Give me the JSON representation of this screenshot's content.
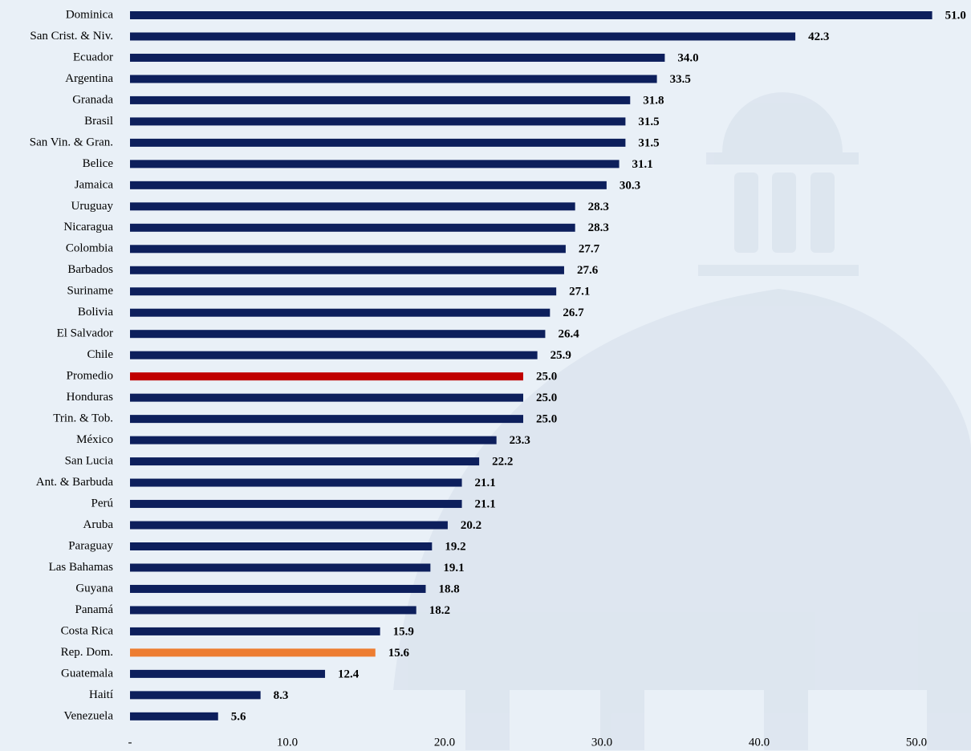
{
  "chart_data": {
    "type": "barh",
    "categories": [
      "Dominica",
      "San Crist. & Niv.",
      "Ecuador",
      "Argentina",
      "Granada",
      "Brasil",
      "San Vin. & Gran.",
      "Belice",
      "Jamaica",
      "Uruguay",
      "Nicaragua",
      "Colombia",
      "Barbados",
      "Suriname",
      "Bolivia",
      "El Salvador",
      "Chile",
      "Promedio",
      "Honduras",
      "Trin. & Tob.",
      "México",
      "San Lucia",
      "Ant. & Barbuda",
      "Perú",
      "Aruba",
      "Paraguay",
      "Las Bahamas",
      "Guyana",
      "Panamá",
      "Costa Rica",
      "Rep. Dom.",
      "Guatemala",
      "Haití",
      "Venezuela"
    ],
    "values": [
      51.0,
      42.3,
      34.0,
      33.5,
      31.8,
      31.5,
      31.5,
      31.1,
      30.3,
      28.3,
      28.3,
      27.7,
      27.6,
      27.1,
      26.7,
      26.4,
      25.9,
      25.0,
      25.0,
      25.0,
      23.3,
      22.2,
      21.1,
      21.1,
      20.2,
      19.2,
      19.1,
      18.8,
      18.2,
      15.9,
      15.6,
      12.4,
      8.3,
      5.6
    ],
    "value_labels": [
      "51.0",
      "42.3",
      "34.0",
      "33.5",
      "31.8",
      "31.5",
      "31.5",
      "31.1",
      "30.3",
      "28.3",
      "28.3",
      "27.7",
      "27.6",
      "27.1",
      "26.7",
      "26.4",
      "25.9",
      "25.0",
      "25.0",
      "25.0",
      "23.3",
      "22.2",
      "21.1",
      "21.1",
      "20.2",
      "19.2",
      "19.1",
      "18.8",
      "18.2",
      "15.9",
      "15.6",
      "12.4",
      "8.3",
      "5.6"
    ],
    "colors": [
      "#0d1f5c",
      "#0d1f5c",
      "#0d1f5c",
      "#0d1f5c",
      "#0d1f5c",
      "#0d1f5c",
      "#0d1f5c",
      "#0d1f5c",
      "#0d1f5c",
      "#0d1f5c",
      "#0d1f5c",
      "#0d1f5c",
      "#0d1f5c",
      "#0d1f5c",
      "#0d1f5c",
      "#0d1f5c",
      "#0d1f5c",
      "#c00000",
      "#0d1f5c",
      "#0d1f5c",
      "#0d1f5c",
      "#0d1f5c",
      "#0d1f5c",
      "#0d1f5c",
      "#0d1f5c",
      "#0d1f5c",
      "#0d1f5c",
      "#0d1f5c",
      "#0d1f5c",
      "#0d1f5c",
      "#ed7d31",
      "#0d1f5c",
      "#0d1f5c",
      "#0d1f5c"
    ],
    "xlim": [
      0,
      53
    ],
    "xticks": [
      {
        "value": 0,
        "label": "-"
      },
      {
        "value": 10,
        "label": "10.0"
      },
      {
        "value": 20,
        "label": "20.0"
      },
      {
        "value": 30,
        "label": "30.0"
      },
      {
        "value": 40,
        "label": "40.0"
      },
      {
        "value": 50,
        "label": "50.0"
      }
    ],
    "grid": false
  }
}
